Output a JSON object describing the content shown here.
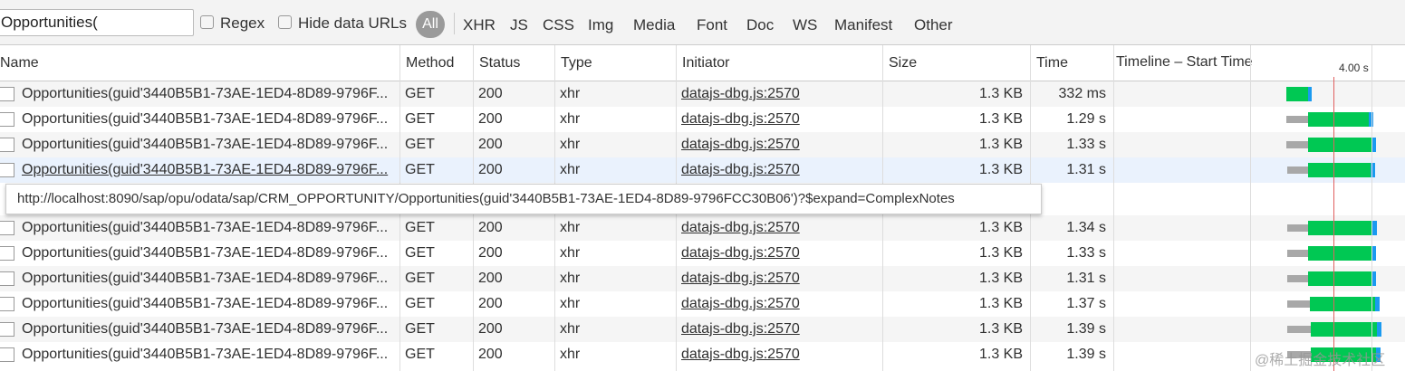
{
  "toolbar": {
    "filter_value": "Opportunities(",
    "regex_label": "Regex",
    "hide_data_urls_label": "Hide data URLs",
    "types": [
      "All",
      "XHR",
      "JS",
      "CSS",
      "Img",
      "Media",
      "Font",
      "Doc",
      "WS",
      "Manifest",
      "Other"
    ],
    "active_type": "All"
  },
  "columns": [
    "Name",
    "Method",
    "Status",
    "Type",
    "Initiator",
    "Size",
    "Time",
    "Timeline – Start Time"
  ],
  "timeline_tick": "4.00 s",
  "rows": [
    {
      "name": "Opportunities(guid'3440B5B1-73AE-1ED4-8D89-9796F...",
      "method": "GET",
      "status": "200",
      "type": "xhr",
      "initiator": "datajs-dbg.js:2570",
      "size": "1.3 KB",
      "time": "332 ms"
    },
    {
      "name": "Opportunities(guid'3440B5B1-73AE-1ED4-8D89-9796F...",
      "method": "GET",
      "status": "200",
      "type": "xhr",
      "initiator": "datajs-dbg.js:2570",
      "size": "1.3 KB",
      "time": "1.29 s"
    },
    {
      "name": "Opportunities(guid'3440B5B1-73AE-1ED4-8D89-9796F...",
      "method": "GET",
      "status": "200",
      "type": "xhr",
      "initiator": "datajs-dbg.js:2570",
      "size": "1.3 KB",
      "time": "1.33 s"
    },
    {
      "name": "Opportunities(guid'3440B5B1-73AE-1ED4-8D89-9796F...",
      "method": "GET",
      "status": "200",
      "type": "xhr",
      "initiator": "datajs-dbg.js:2570",
      "size": "1.3 KB",
      "time": "1.31 s"
    },
    {
      "name": "Opportunities(guid'3440B5B1-73AE-1ED4-8D89-9796F...",
      "method": "GET",
      "status": "200",
      "type": "xhr",
      "initiator": "datajs-dbg.js:2570",
      "size": "1.3 KB",
      "time": "1.34 s"
    },
    {
      "name": "Opportunities(guid'3440B5B1-73AE-1ED4-8D89-9796F...",
      "method": "GET",
      "status": "200",
      "type": "xhr",
      "initiator": "datajs-dbg.js:2570",
      "size": "1.3 KB",
      "time": "1.33 s"
    },
    {
      "name": "Opportunities(guid'3440B5B1-73AE-1ED4-8D89-9796F...",
      "method": "GET",
      "status": "200",
      "type": "xhr",
      "initiator": "datajs-dbg.js:2570",
      "size": "1.3 KB",
      "time": "1.31 s"
    },
    {
      "name": "Opportunities(guid'3440B5B1-73AE-1ED4-8D89-9796F...",
      "method": "GET",
      "status": "200",
      "type": "xhr",
      "initiator": "datajs-dbg.js:2570",
      "size": "1.3 KB",
      "time": "1.37 s"
    },
    {
      "name": "Opportunities(guid'3440B5B1-73AE-1ED4-8D89-9796F...",
      "method": "GET",
      "status": "200",
      "type": "xhr",
      "initiator": "datajs-dbg.js:2570",
      "size": "1.3 KB",
      "time": "1.39 s"
    },
    {
      "name": "Opportunities(guid'3440B5B1-73AE-1ED4-8D89-9796F...",
      "method": "GET",
      "status": "200",
      "type": "xhr",
      "initiator": "datajs-dbg.js:2570",
      "size": "1.3 KB",
      "time": "1.39 s"
    }
  ],
  "selected_row": 3,
  "tooltip": "http://localhost:8090/sap/opu/odata/sap/CRM_OPPORTUNITY/Opportunities(guid'3440B5B1-73AE-1ED4-8D89-9796FCC30B06')?$expand=ComplexNotes",
  "watermark": "@稀土掘金技术社区",
  "colors": {
    "waiting": "#a8a8a8",
    "download": "#00c853",
    "receive": "#1a9af0",
    "marker": "#e06060",
    "active_filter": "#9a9a9a"
  }
}
